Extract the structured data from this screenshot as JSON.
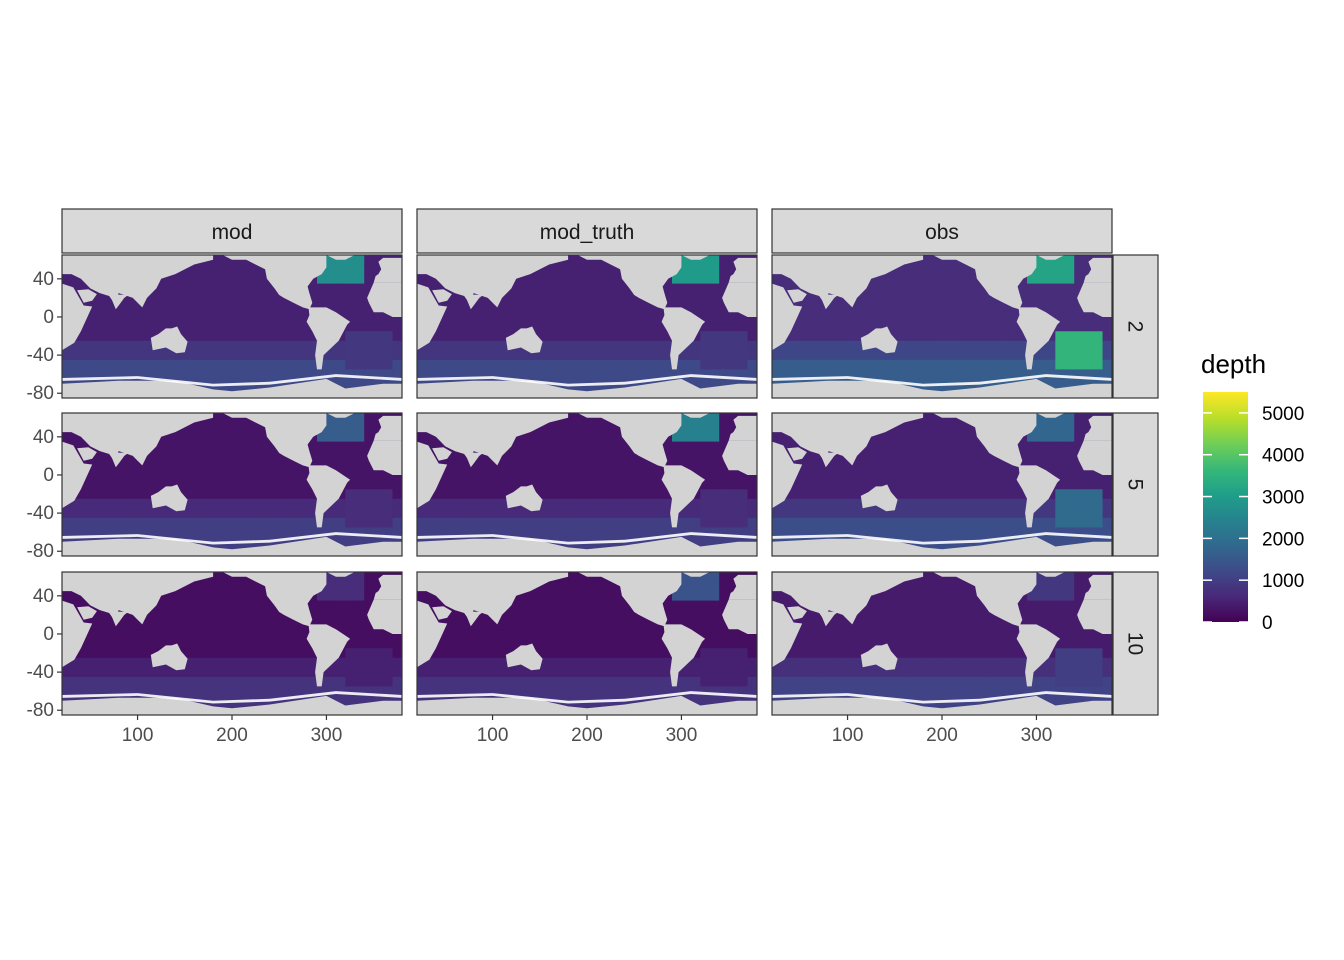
{
  "chart_data": {
    "type": "heatmap",
    "title": "",
    "xlabel": "",
    "ylabel": "",
    "facet_cols": [
      "mod",
      "mod_truth",
      "obs"
    ],
    "facet_rows": [
      "2",
      "5",
      "10"
    ],
    "x_ticks": [
      100,
      200,
      300
    ],
    "y_ticks": [
      40,
      0,
      -40,
      -80
    ],
    "xlim": [
      20,
      380
    ],
    "ylim": [
      -85,
      65
    ],
    "legend": {
      "title": "depth",
      "ticks": [
        5000,
        4000,
        3000,
        2000,
        1000,
        0
      ],
      "range": [
        0,
        5500
      ],
      "placement": "right"
    },
    "colors": {
      "land": "#d3d3d3",
      "panel_border": "#333333",
      "strip_bg": "#d9d9d9",
      "viridis": [
        "#440154",
        "#482878",
        "#3e4a89",
        "#31688e",
        "#26828e",
        "#1f9e89",
        "#35b779",
        "#6ece58",
        "#b5de2b",
        "#fde725"
      ]
    },
    "panels": [
      {
        "col": "mod",
        "row": "2",
        "base_depth": 500,
        "southern_depth": 1200,
        "north_atlantic_depth": 2700,
        "south_atlantic_depth": 900
      },
      {
        "col": "mod_truth",
        "row": "2",
        "base_depth": 500,
        "southern_depth": 1200,
        "north_atlantic_depth": 3000,
        "south_atlantic_depth": 900
      },
      {
        "col": "obs",
        "row": "2",
        "base_depth": 700,
        "southern_depth": 1600,
        "north_atlantic_depth": 3200,
        "south_atlantic_depth": 3600
      },
      {
        "col": "mod",
        "row": "5",
        "base_depth": 300,
        "southern_depth": 1000,
        "north_atlantic_depth": 1600,
        "south_atlantic_depth": 700
      },
      {
        "col": "mod_truth",
        "row": "5",
        "base_depth": 300,
        "southern_depth": 1000,
        "north_atlantic_depth": 2400,
        "south_atlantic_depth": 700
      },
      {
        "col": "obs",
        "row": "5",
        "base_depth": 500,
        "southern_depth": 1300,
        "north_atlantic_depth": 1800,
        "south_atlantic_depth": 1900
      },
      {
        "col": "mod",
        "row": "10",
        "base_depth": 200,
        "southern_depth": 800,
        "north_atlantic_depth": 700,
        "south_atlantic_depth": 500
      },
      {
        "col": "mod_truth",
        "row": "10",
        "base_depth": 200,
        "southern_depth": 800,
        "north_atlantic_depth": 1400,
        "south_atlantic_depth": 500
      },
      {
        "col": "obs",
        "row": "10",
        "base_depth": 400,
        "southern_depth": 1100,
        "north_atlantic_depth": 900,
        "south_atlantic_depth": 1000
      }
    ]
  }
}
